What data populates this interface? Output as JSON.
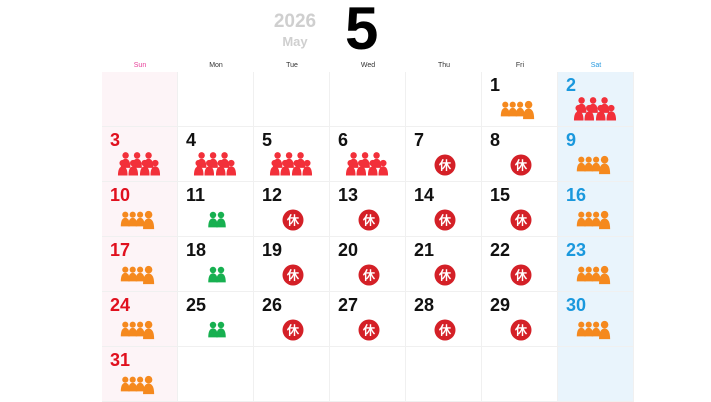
{
  "header": {
    "year": "2026",
    "month_name": "May",
    "month_number": "5"
  },
  "weekdays": [
    "Sun",
    "Mon",
    "Tue",
    "Wed",
    "Thu",
    "Fri",
    "Sat"
  ],
  "first_weekday_index": 5,
  "colors": {
    "sunday": "#e0101e",
    "saturday": "#1a98dd",
    "very_busy": "#f2303a",
    "busy": "#f5891e",
    "few": "#17b050",
    "closed": "#d42027"
  },
  "closed_label": "休",
  "days": [
    {
      "day": "1",
      "status": "busy"
    },
    {
      "day": "2",
      "status": "very"
    },
    {
      "day": "3",
      "status": "very"
    },
    {
      "day": "4",
      "status": "very"
    },
    {
      "day": "5",
      "status": "very"
    },
    {
      "day": "6",
      "status": "very"
    },
    {
      "day": "7",
      "status": "closed"
    },
    {
      "day": "8",
      "status": "closed"
    },
    {
      "day": "9",
      "status": "busy"
    },
    {
      "day": "10",
      "status": "busy"
    },
    {
      "day": "11",
      "status": "few"
    },
    {
      "day": "12",
      "status": "closed"
    },
    {
      "day": "13",
      "status": "closed"
    },
    {
      "day": "14",
      "status": "closed"
    },
    {
      "day": "15",
      "status": "closed"
    },
    {
      "day": "16",
      "status": "busy"
    },
    {
      "day": "17",
      "status": "busy"
    },
    {
      "day": "18",
      "status": "few"
    },
    {
      "day": "19",
      "status": "closed"
    },
    {
      "day": "20",
      "status": "closed"
    },
    {
      "day": "21",
      "status": "closed"
    },
    {
      "day": "22",
      "status": "closed"
    },
    {
      "day": "23",
      "status": "busy"
    },
    {
      "day": "24",
      "status": "busy"
    },
    {
      "day": "25",
      "status": "few"
    },
    {
      "day": "26",
      "status": "closed"
    },
    {
      "day": "27",
      "status": "closed"
    },
    {
      "day": "28",
      "status": "closed"
    },
    {
      "day": "29",
      "status": "closed"
    },
    {
      "day": "30",
      "status": "busy"
    },
    {
      "day": "31",
      "status": "busy"
    }
  ]
}
